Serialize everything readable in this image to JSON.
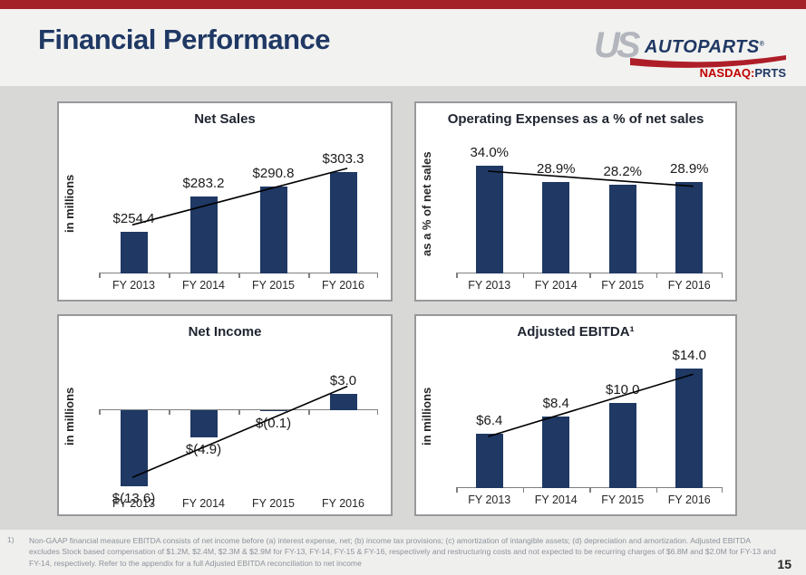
{
  "header": {
    "title": "Financial Performance",
    "logo": {
      "us": "US",
      "autoparts": "AUTOPARTS",
      "registered": "®",
      "exchange": "NASDAQ:",
      "ticker": "PRTS"
    }
  },
  "chart_data": [
    {
      "id": "net-sales",
      "type": "bar",
      "title": "Net Sales",
      "ylabel": "in millions",
      "categories": [
        "FY 2013",
        "FY 2014",
        "FY 2015",
        "FY 2016"
      ],
      "values": [
        254.4,
        283.2,
        290.8,
        303.3
      ],
      "data_labels": [
        "$254.4",
        "$283.2",
        "$290.8",
        "$303.3"
      ],
      "ylim": [
        220,
        326
      ],
      "trendline": true,
      "grid": false,
      "legend": "none",
      "bar_color": "#1F3864"
    },
    {
      "id": "operating-expenses",
      "type": "bar",
      "title": "Operating Expenses as a % of net sales",
      "ylabel": "as a % of net sales",
      "categories": [
        "FY 2013",
        "FY 2014",
        "FY 2015",
        "FY 2016"
      ],
      "values": [
        34.0,
        28.9,
        28.2,
        28.9
      ],
      "data_labels": [
        "34.0%",
        "28.9%",
        "28.2%",
        "28.9%"
      ],
      "ylim": [
        0,
        41
      ],
      "trendline": true,
      "grid": false,
      "legend": "none",
      "bar_color": "#1F3864"
    },
    {
      "id": "net-income",
      "type": "bar",
      "title": "Net Income",
      "ylabel": "in millions",
      "categories": [
        "FY 2013",
        "FY 2014",
        "FY 2015",
        "FY 2016"
      ],
      "values": [
        -13.6,
        -4.9,
        -0.1,
        3.0
      ],
      "data_labels": [
        "$(13.6)",
        "$(4.9)",
        "$(0.1)",
        "$3.0"
      ],
      "ylim": [
        -14,
        9.6
      ],
      "trendline": true,
      "grid": false,
      "legend": "none",
      "bar_color": "#1F3864"
    },
    {
      "id": "adjusted-ebitda",
      "type": "bar",
      "title": "Adjusted EBITDA¹",
      "ylabel": "in millions",
      "categories": [
        "FY 2013",
        "FY 2014",
        "FY 2015",
        "FY 2016"
      ],
      "values": [
        6.4,
        8.4,
        10.0,
        14.0
      ],
      "data_labels": [
        "$6.4",
        "$8.4",
        "$10.0",
        "$14.0"
      ],
      "ylim": [
        0,
        15.4
      ],
      "trendline": true,
      "grid": false,
      "legend": "none",
      "bar_color": "#1F3864"
    }
  ],
  "footnote": {
    "marker": "1)",
    "text": "Non-GAAP financial measure EBITDA consists of net income before (a) interest expense, net; (b) income tax provisions; (c) amortization of intangible assets; (d) depreciation and amortization.  Adjusted EBITDA excludes Stock based compensation of $1.2M, $2.4M, $2.3M & $2.9M for  FY-13, FY-14, FY-15 & FY-16, respectively and restructuring costs and not expected to be recurring charges of $6.8M and $2.0M for FY-13 and FY-14, respectively.  Refer to the appendix for a full Adjusted EBITDA reconciliation to net income"
  },
  "page_number": "15",
  "colors": {
    "accent_red": "#A32127",
    "navy": "#1F3864",
    "logo_gray": "#b3b6bd",
    "nasdaq_red": "#C00000",
    "content_bg": "#D8D8D6",
    "header_bg": "#F2F2F0",
    "panel_border": "#97999b",
    "axis_gray": "#7f7f7f",
    "trend_black": "#000000",
    "footnote_gray": "#8c929b"
  }
}
